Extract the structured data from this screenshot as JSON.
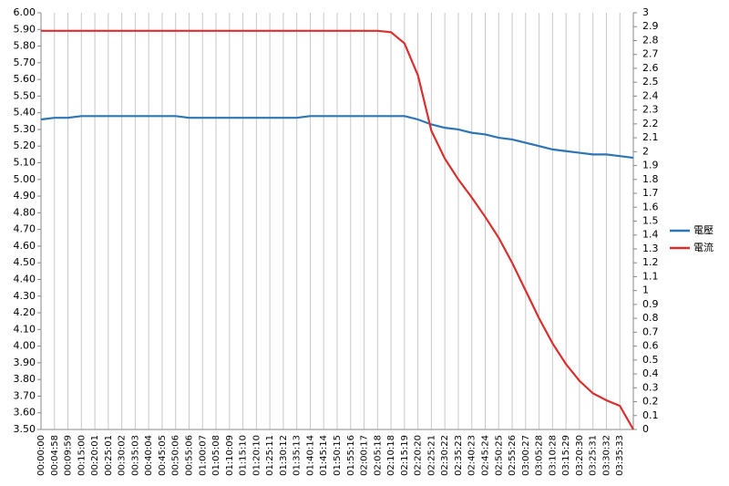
{
  "chart_data": {
    "type": "line",
    "categories": [
      "00:00:00",
      "00:04:58",
      "00:09:59",
      "00:15:00",
      "00:20:01",
      "00:25:01",
      "00:30:02",
      "00:35:03",
      "00:40:04",
      "00:45:05",
      "00:50:06",
      "00:55:06",
      "01:00:07",
      "01:05:08",
      "01:10:09",
      "01:15:10",
      "01:20:10",
      "01:25:11",
      "01:30:12",
      "01:35:13",
      "01:40:14",
      "01:45:14",
      "01:50:15",
      "01:55:16",
      "02:00:17",
      "02:05:18",
      "02:10:18",
      "02:15:19",
      "02:20:20",
      "02:25:21",
      "02:30:22",
      "02:35:23",
      "02:40:23",
      "02:45:24",
      "02:50:25",
      "02:55:26",
      "03:00:27",
      "03:05:28",
      "03:10:28",
      "03:15:29",
      "03:20:30",
      "03:25:31",
      "03:30:32",
      "03:35:33",
      null
    ],
    "series": [
      {
        "name": "電壓",
        "color": "#2e75b6",
        "axis": "y",
        "values": [
          5.36,
          5.37,
          5.37,
          5.38,
          5.38,
          5.38,
          5.38,
          5.38,
          5.38,
          5.38,
          5.38,
          5.37,
          5.37,
          5.37,
          5.37,
          5.37,
          5.37,
          5.37,
          5.37,
          5.37,
          5.38,
          5.38,
          5.38,
          5.38,
          5.38,
          5.38,
          5.38,
          5.38,
          5.36,
          5.33,
          5.31,
          5.3,
          5.28,
          5.27,
          5.25,
          5.24,
          5.22,
          5.2,
          5.18,
          5.17,
          5.16,
          5.15,
          5.15,
          5.14,
          5.13
        ]
      },
      {
        "name": "電流",
        "color": "#d9302f",
        "axis": "y2",
        "values": [
          2.87,
          2.87,
          2.87,
          2.87,
          2.87,
          2.87,
          2.87,
          2.87,
          2.87,
          2.87,
          2.87,
          2.87,
          2.87,
          2.87,
          2.87,
          2.87,
          2.87,
          2.87,
          2.87,
          2.87,
          2.87,
          2.87,
          2.87,
          2.87,
          2.87,
          2.87,
          2.86,
          2.78,
          2.55,
          2.15,
          1.95,
          1.8,
          1.67,
          1.53,
          1.38,
          1.2,
          1.0,
          0.8,
          0.62,
          0.47,
          0.35,
          0.26,
          0.21,
          0.17,
          0
        ]
      }
    ],
    "ylim": [
      3.5,
      6.0
    ],
    "yticks": [
      {
        "value": 3.5,
        "label": "3.50"
      },
      {
        "value": 3.6,
        "label": "3.60"
      },
      {
        "value": 3.7,
        "label": "3.70"
      },
      {
        "value": 3.8,
        "label": "3.80"
      },
      {
        "value": 3.9,
        "label": "3.90"
      },
      {
        "value": 4.0,
        "label": "4.00"
      },
      {
        "value": 4.1,
        "label": "4.10"
      },
      {
        "value": 4.2,
        "label": "4.20"
      },
      {
        "value": 4.3,
        "label": "4.30"
      },
      {
        "value": 4.4,
        "label": "4.40"
      },
      {
        "value": 4.5,
        "label": "4.50"
      },
      {
        "value": 4.6,
        "label": "4.60"
      },
      {
        "value": 4.7,
        "label": "4.70"
      },
      {
        "value": 4.8,
        "label": "4.80"
      },
      {
        "value": 4.9,
        "label": "4.90"
      },
      {
        "value": 5.0,
        "label": "5.00"
      },
      {
        "value": 5.1,
        "label": "5.10"
      },
      {
        "value": 5.2,
        "label": "5.20"
      },
      {
        "value": 5.3,
        "label": "5.30"
      },
      {
        "value": 5.4,
        "label": "5.40"
      },
      {
        "value": 5.5,
        "label": "5.50"
      },
      {
        "value": 5.6,
        "label": "5.60"
      },
      {
        "value": 5.7,
        "label": "5.70"
      },
      {
        "value": 5.8,
        "label": "5.80"
      },
      {
        "value": 5.9,
        "label": "5.90"
      },
      {
        "value": 6.0,
        "label": "6.00"
      }
    ],
    "y2lim": [
      0,
      3
    ],
    "y2ticks": [
      0,
      0.1,
      0.2,
      0.3,
      0.4,
      0.5,
      0.6,
      0.7,
      0.8,
      0.9,
      1,
      1.1,
      1.2,
      1.3,
      1.4,
      1.5,
      1.6,
      1.7,
      1.8,
      1.9,
      2,
      2.1,
      2.2,
      2.3,
      2.4,
      2.5,
      2.6,
      2.7,
      2.8,
      2.9,
      3
    ],
    "grid": true,
    "legend": "right"
  }
}
